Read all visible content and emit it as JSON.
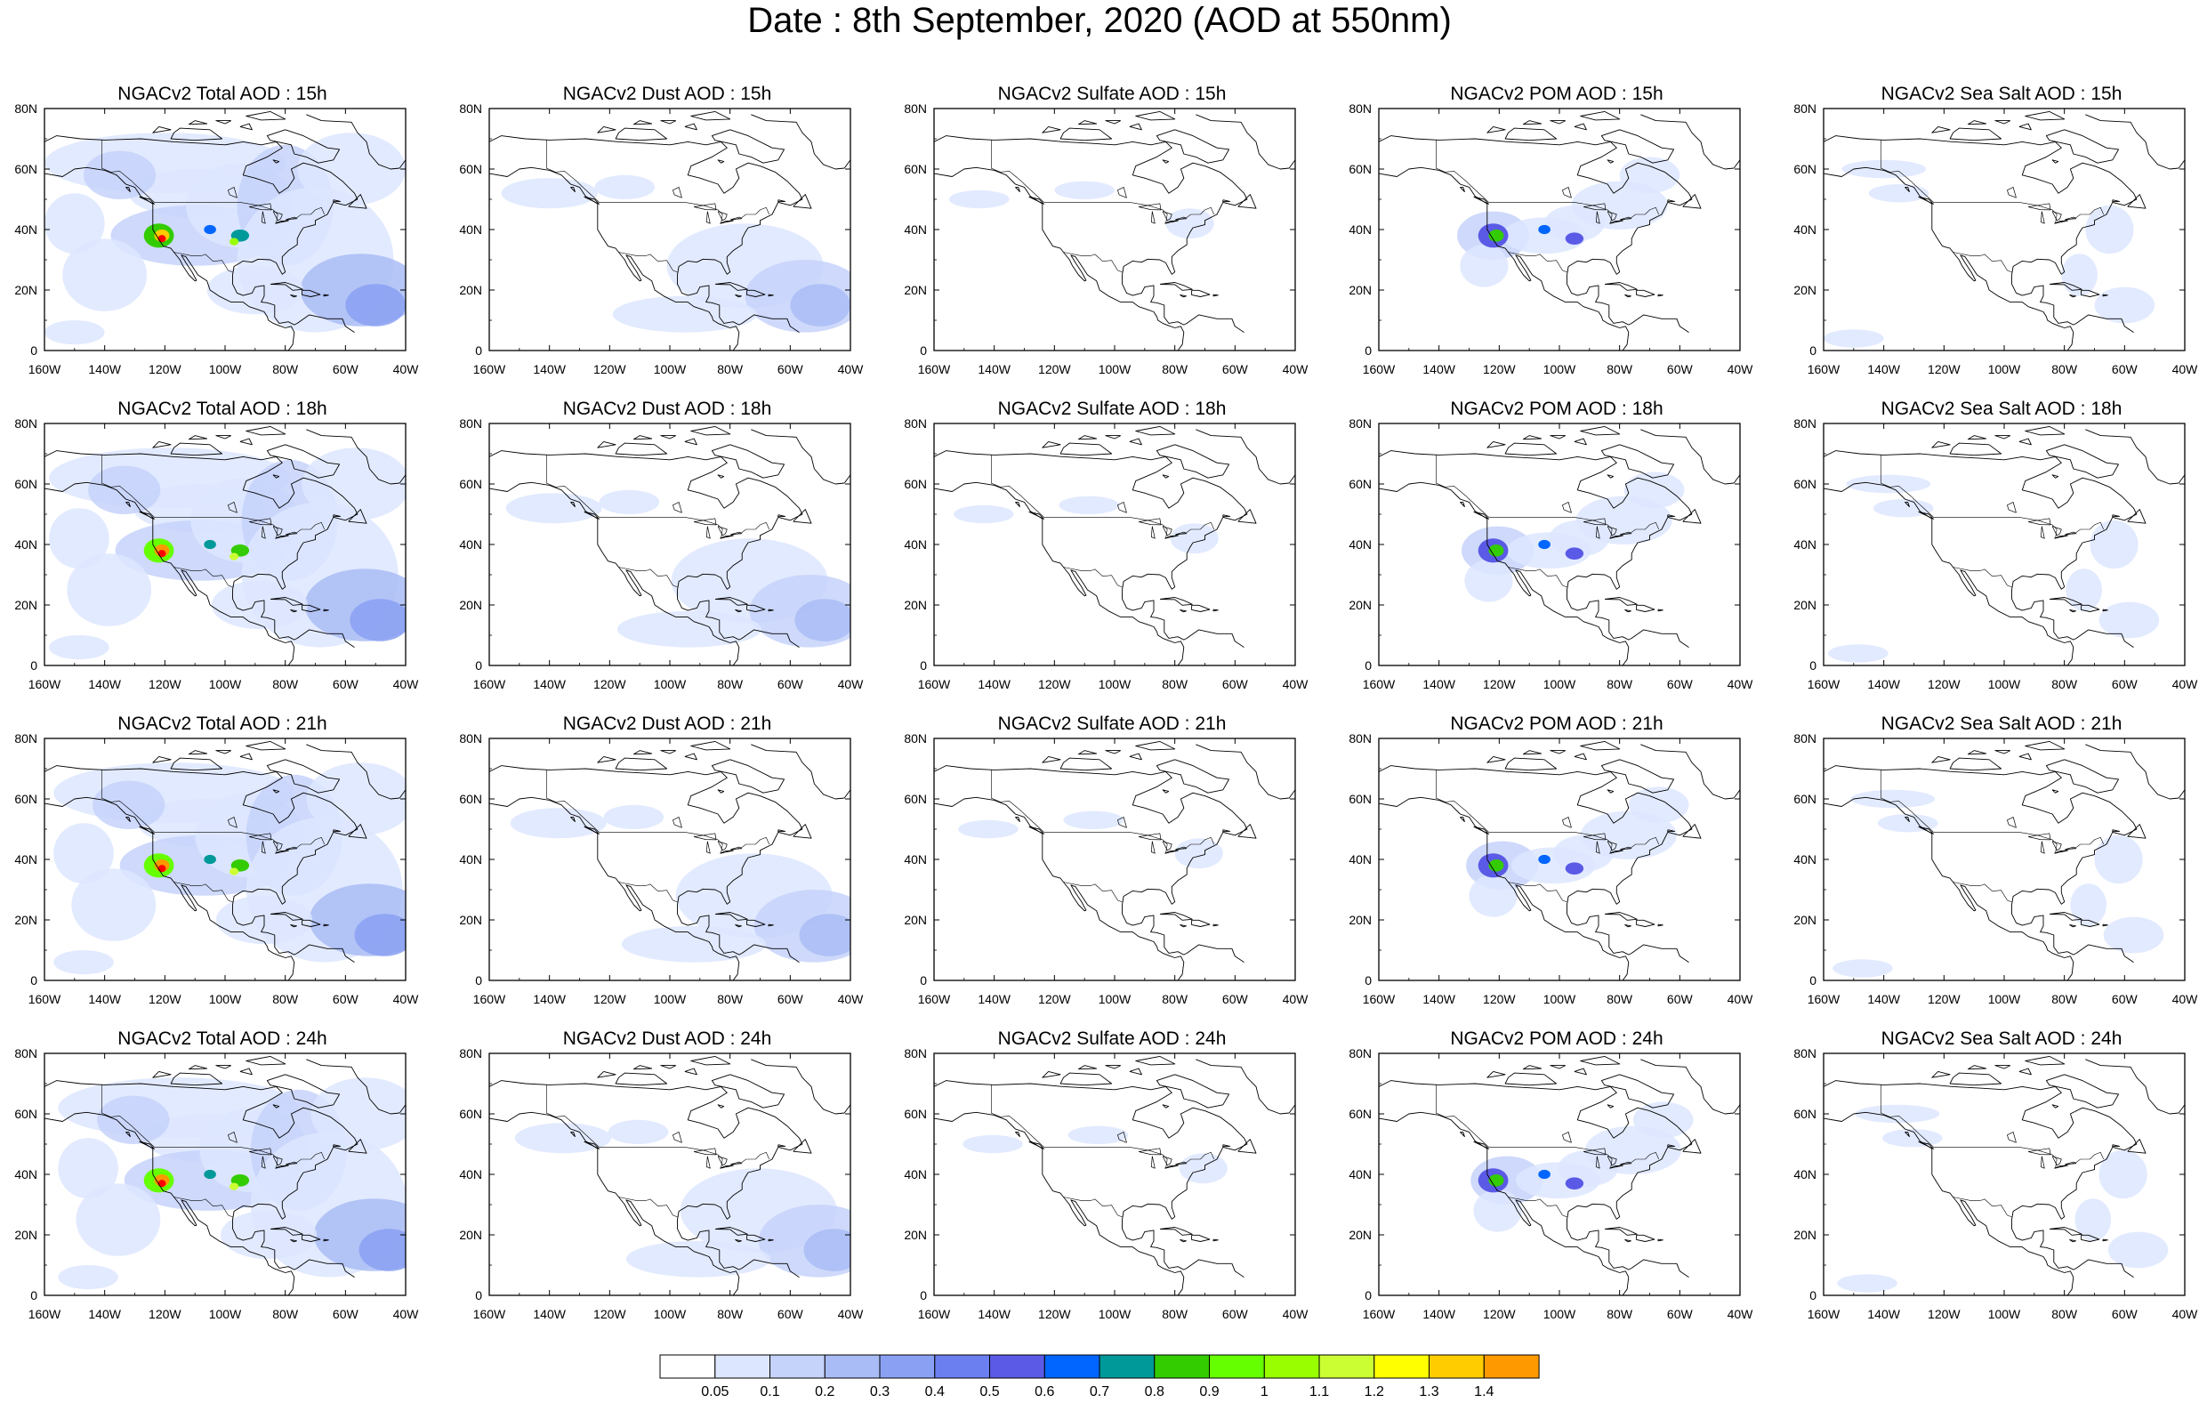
{
  "title": "Date : 8th September, 2020 (AOD at 550nm)",
  "rows": [
    {
      "hour": "15h",
      "panels": [
        "NGACv2 Total AOD : 15h",
        "NGACv2 Dust AOD : 15h",
        "NGACv2 Sulfate AOD : 15h",
        "NGACv2 POM AOD : 15h",
        "NGACv2 Sea Salt AOD : 15h"
      ]
    },
    {
      "hour": "18h",
      "panels": [
        "NGACv2 Total AOD : 18h",
        "NGACv2 Dust AOD : 18h",
        "NGACv2 Sulfate AOD : 18h",
        "NGACv2 POM AOD : 18h",
        "NGACv2 Sea Salt AOD : 18h"
      ]
    },
    {
      "hour": "21h",
      "panels": [
        "NGACv2 Total AOD : 21h",
        "NGACv2 Dust AOD : 21h",
        "NGACv2 Sulfate AOD : 21h",
        "NGACv2 POM AOD : 21h",
        "NGACv2 Sea Salt AOD : 21h"
      ]
    },
    {
      "hour": "24h",
      "panels": [
        "NGACv2 Total AOD : 24h",
        "NGACv2 Dust AOD : 24h",
        "NGACv2 Sulfate AOD : 24h",
        "NGACv2 POM AOD : 24h",
        "NGACv2 Sea Salt  AOD : 24h"
      ]
    }
  ],
  "columns": [
    "Total",
    "Dust",
    "Sulfate",
    "POM",
    "Sea Salt"
  ],
  "map_axes": {
    "lat_labels": [
      "0",
      "20N",
      "40N",
      "60N",
      "80N"
    ],
    "lon_labels": [
      "160W",
      "140W",
      "120W",
      "100W",
      "80W",
      "60W",
      "40W"
    ],
    "lon_range": [
      -160,
      -40
    ],
    "lat_range": [
      0,
      80
    ]
  },
  "colorbar": {
    "labels": [
      "0.05",
      "0.1",
      "0.2",
      "0.3",
      "0.4",
      "0.5",
      "0.6",
      "0.7",
      "0.8",
      "0.9",
      "1",
      "1.1",
      "1.2",
      "1.3",
      "1.4"
    ],
    "colors": [
      "#ffffff",
      "#dde6ff",
      "#c5d2fa",
      "#a9bcf5",
      "#8aa0f2",
      "#6b7ff0",
      "#5a5ae6",
      "#0066ff",
      "#009999",
      "#33cc00",
      "#66ff00",
      "#99ff00",
      "#ccff33",
      "#ffff00",
      "#ffcc00",
      "#ff9900",
      "#ff6600",
      "#ff0000"
    ]
  }
}
